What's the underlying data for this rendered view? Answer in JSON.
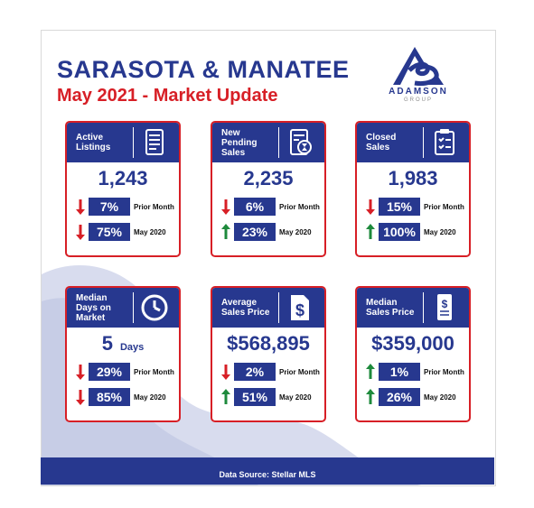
{
  "header": {
    "title": "SARASOTA & MANATEE",
    "subtitle": "May 2021 - Market Update"
  },
  "logo": {
    "name": "ADAMSON",
    "sub": "GROUP",
    "icon": "adamson-wave-logo"
  },
  "colors": {
    "navy": "#27388f",
    "red": "#d71f26",
    "green": "#1e8a3c",
    "swoosh": "#cfd4ea"
  },
  "tiles": [
    {
      "label": [
        "Active",
        "Listings"
      ],
      "icon": "listing-scroll-icon",
      "value": "1,243",
      "unit": "",
      "rows": [
        {
          "dir": "down",
          "pct": "7%",
          "cmp": "Prior Month"
        },
        {
          "dir": "down",
          "pct": "75%",
          "cmp": "May 2020"
        }
      ]
    },
    {
      "label": [
        "New",
        "Pending",
        "Sales"
      ],
      "icon": "pending-document-icon",
      "value": "2,235",
      "unit": "",
      "rows": [
        {
          "dir": "down",
          "pct": "6%",
          "cmp": "Prior Month"
        },
        {
          "dir": "up",
          "pct": "23%",
          "cmp": "May 2020"
        }
      ]
    },
    {
      "label": [
        "Closed",
        "Sales"
      ],
      "icon": "clipboard-check-icon",
      "value": "1,983",
      "unit": "",
      "rows": [
        {
          "dir": "down",
          "pct": "15%",
          "cmp": "Prior Month"
        },
        {
          "dir": "up",
          "pct": "100%",
          "cmp": "May 2020"
        }
      ]
    },
    {
      "label": [
        "Median",
        "Days on",
        "Market"
      ],
      "icon": "clock-icon",
      "value": "5",
      "unit": "Days",
      "rows": [
        {
          "dir": "down",
          "pct": "29%",
          "cmp": "Prior Month"
        },
        {
          "dir": "down",
          "pct": "85%",
          "cmp": "May 2020"
        }
      ]
    },
    {
      "label": [
        "Average",
        "Sales Price"
      ],
      "icon": "dollar-document-icon",
      "value": "$568,895",
      "unit": "",
      "rows": [
        {
          "dir": "down",
          "pct": "2%",
          "cmp": "Prior Month"
        },
        {
          "dir": "up",
          "pct": "51%",
          "cmp": "May 2020"
        }
      ]
    },
    {
      "label": [
        "Median",
        "Sales Price"
      ],
      "icon": "dollar-receipt-icon",
      "value": "$359,000",
      "unit": "",
      "rows": [
        {
          "dir": "up",
          "pct": "1%",
          "cmp": "Prior Month"
        },
        {
          "dir": "up",
          "pct": "26%",
          "cmp": "May 2020"
        }
      ]
    }
  ],
  "footer": {
    "source": "Data Source: Stellar MLS"
  }
}
